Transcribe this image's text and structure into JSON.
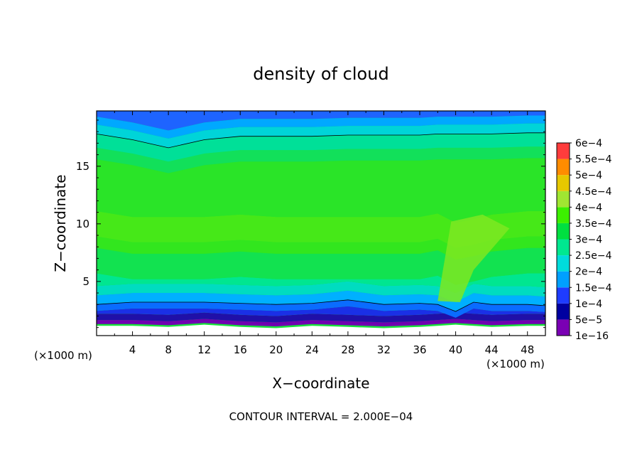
{
  "chart_data": {
    "type": "heatmap",
    "title": "density of cloud",
    "xlabel": "X−coordinate",
    "ylabel": "Z−coordinate",
    "x_unit_left": "(×1000 m)",
    "x_unit_right": "(×1000 m)",
    "footer": "CONTOUR INTERVAL = 2.000E−04",
    "xlim": [
      0,
      50
    ],
    "ylim": [
      0.3,
      19.8
    ],
    "x_ticks": [
      "4",
      "8",
      "12",
      "16",
      "20",
      "24",
      "28",
      "32",
      "36",
      "40",
      "44",
      "48"
    ],
    "y_ticks": [
      "5",
      "10",
      "15"
    ],
    "colorbar": {
      "labels": [
        "1e−16",
        "5e−5",
        "1e−4",
        "1.5e−4",
        "2e−4",
        "2.5e−4",
        "3e−4",
        "3.5e−4",
        "4e−4",
        "4.5e−4",
        "5e−4",
        "5.5e−4",
        "6e−4"
      ],
      "colors": [
        "#7a00b4",
        "#0000a0",
        "#1e3cff",
        "#00a0ff",
        "#00dcdc",
        "#00e890",
        "#00e040",
        "#3cf000",
        "#a0e632",
        "#e6c800",
        "#ff8c00",
        "#ff3c3c",
        "#ff8080"
      ]
    },
    "band_colors": [
      "#7000b0",
      "#1a0a9a",
      "#1e3cff",
      "#0a78ff",
      "#00b4ff",
      "#00d8c8",
      "#00e690",
      "#10e050",
      "#30e41e",
      "#46e818"
    ],
    "column_profile_x": [
      0,
      4,
      8,
      12,
      16,
      20,
      24,
      28,
      32,
      36,
      38,
      40,
      42,
      44,
      48,
      50
    ],
    "surface_z": [
      1.3,
      1.3,
      1.2,
      1.4,
      1.2,
      1.1,
      1.3,
      1.2,
      1.1,
      1.2,
      1.3,
      1.4,
      1.3,
      1.2,
      1.3,
      1.3
    ],
    "contour_low_z": [
      3.0,
      3.2,
      3.2,
      3.2,
      3.1,
      3.0,
      3.1,
      3.4,
      3.0,
      3.1,
      3.0,
      2.4,
      3.2,
      3.0,
      3.0,
      2.9
    ],
    "contour_high_z": [
      17.8,
      17.3,
      16.6,
      17.3,
      17.6,
      17.6,
      17.6,
      17.7,
      17.7,
      17.7,
      17.8,
      17.8,
      17.8,
      17.8,
      17.9,
      17.9
    ],
    "core_max_z": [
      9.5,
      9.0,
      9.0,
      9.0,
      9.2,
      9.0,
      9.0,
      9.0,
      9.0,
      9.0,
      9.3,
      8.5,
      8.8,
      9.2,
      9.5,
      9.5
    ]
  }
}
